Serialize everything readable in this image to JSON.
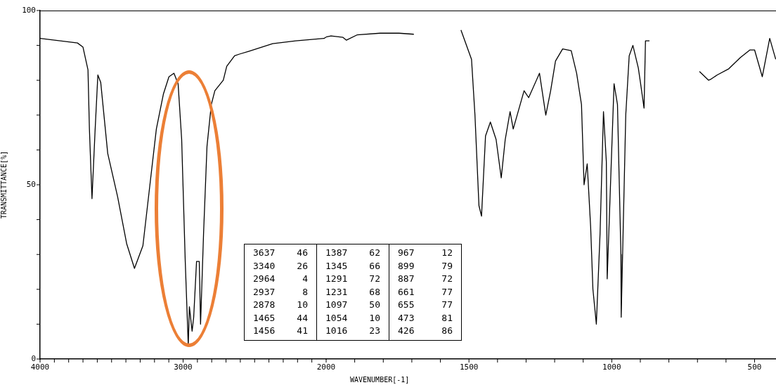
{
  "chart_data": [
    {
      "type": "line",
      "xlabel": "WAVENUMBER[-1]",
      "ylabel": "TRANSMITTANCE[%]",
      "x": [
        4000,
        3739,
        3700,
        3665,
        3655,
        3637,
        3616,
        3596,
        3576,
        3527,
        3458,
        3394,
        3340,
        3281,
        3232,
        3187,
        3138,
        3099,
        3064,
        3035,
        3010,
        2985,
        2964,
        2956,
        2937,
        2926,
        2906,
        2887,
        2878,
        2857,
        2833,
        2803,
        2778,
        2719,
        2695,
        2640,
        2606,
        2542,
        2374,
        2212,
        2015,
        2000
      ],
      "values": [
        92,
        90.7,
        89.5,
        83,
        66,
        46,
        65,
        81.5,
        79.4,
        59,
        46.6,
        33,
        26,
        32.5,
        50,
        66,
        76,
        81,
        82,
        79,
        63,
        28,
        4,
        15,
        8,
        12,
        28,
        28,
        10,
        36,
        61,
        73,
        77,
        80,
        84,
        87,
        87.5,
        88.3,
        90.5,
        91.3,
        92,
        92.4
      ],
      "color": "#000000",
      "marker": "none",
      "line_style": "solid",
      "legend": false,
      "xlim": [
        4000,
        2000
      ],
      "xticks": [
        4000,
        {
          "value": 3900,
          "label": null
        },
        {
          "value": 3800,
          "label": null
        },
        {
          "value": 3700,
          "label": null
        },
        {
          "value": 3600,
          "label": null
        },
        {
          "value": 3500,
          "label": null
        },
        {
          "value": 3400,
          "label": null
        },
        {
          "value": 3300,
          "label": null
        },
        {
          "value": 3200,
          "label": null
        },
        {
          "value": 3100,
          "label": null
        },
        3000,
        {
          "value": 2900,
          "label": null
        },
        {
          "value": 2800,
          "label": null
        },
        {
          "value": 2700,
          "label": null
        },
        {
          "value": 2600,
          "label": null
        },
        {
          "value": 2500,
          "label": null
        },
        {
          "value": 2400,
          "label": null
        },
        {
          "value": 2300,
          "label": null
        },
        {
          "value": 2200,
          "label": null
        },
        {
          "value": 2100,
          "label": null
        }
      ],
      "ylim": [
        0,
        100
      ],
      "yticks": [
        0,
        {
          "value": 10,
          "label": null
        },
        {
          "value": 20,
          "label": null
        },
        {
          "value": 30,
          "label": null
        },
        {
          "value": 40,
          "label": null
        },
        50,
        {
          "value": 60,
          "label": null
        },
        {
          "value": 70,
          "label": null
        },
        {
          "value": 80,
          "label": null
        },
        {
          "value": 90,
          "label": null
        },
        100
      ],
      "annotations": [
        "3637 46",
        "3340 26",
        "2964 4",
        "2937 8",
        "2878 10",
        "1465 44",
        "1456 41",
        "1387 62",
        "1345 66",
        "1291 72",
        "1231 68",
        "1097 50",
        "1054 10",
        "1016 23",
        "967 12",
        "899 79",
        "887 72",
        "661 77",
        "655 77",
        "473 81",
        "426 86"
      ]
    },
    {
      "type": "line",
      "x": [
        2000,
        1983,
        1941,
        1929,
        1892,
        1811,
        1745,
        1693,
        1610,
        1528,
        1491,
        1479,
        1465,
        1456,
        1442,
        1425,
        1405,
        1387,
        1373,
        1356,
        1345,
        1307,
        1291,
        1253,
        1231,
        1214,
        1197,
        1172,
        1142,
        1123,
        1106,
        1097,
        1086,
        1074,
        1066,
        1054,
        1041,
        1029,
        1019,
        1016,
        992,
        980,
        968,
        967,
        951,
        939,
        926,
        907,
        899,
        887,
        882,
        868,
        780,
        693,
        661,
        655,
        631,
        590,
        550,
        516,
        500,
        473,
        447,
        426
      ],
      "values": [
        92.4,
        92.7,
        92.3,
        91.5,
        93,
        93.5,
        93.5,
        93.2,
        null,
        94.4,
        86,
        70,
        44,
        41,
        64,
        68,
        63,
        52,
        63,
        71,
        66,
        77,
        75,
        82,
        70,
        77,
        85.5,
        89,
        88.5,
        82,
        73,
        50,
        56,
        38,
        20,
        10,
        36,
        71,
        56.6,
        23,
        79,
        73,
        30,
        12,
        70,
        87,
        90,
        83.5,
        79,
        72,
        91.3,
        91.3,
        null,
        82.5,
        80,
        80.2,
        81.5,
        83.3,
        86.5,
        88.7,
        88.7,
        81,
        92,
        86
      ],
      "color": "#000000",
      "marker": "none",
      "line_style": "solid",
      "legend": false,
      "xlim": [
        2000,
        425
      ],
      "xticks": [
        2000,
        {
          "value": 1900,
          "label": null
        },
        {
          "value": 1800,
          "label": null
        },
        {
          "value": 1700,
          "label": null
        },
        {
          "value": 1600,
          "label": null
        },
        1500,
        {
          "value": 1400,
          "label": null
        },
        {
          "value": 1300,
          "label": null
        },
        {
          "value": 1200,
          "label": null
        },
        {
          "value": 1100,
          "label": null
        },
        1000,
        {
          "value": 900,
          "label": null
        },
        {
          "value": 800,
          "label": null
        },
        {
          "value": 700,
          "label": null
        },
        {
          "value": 600,
          "label": null
        },
        500
      ],
      "ylim": [
        0,
        100
      ],
      "tick_labels": "x"
    }
  ]
}
